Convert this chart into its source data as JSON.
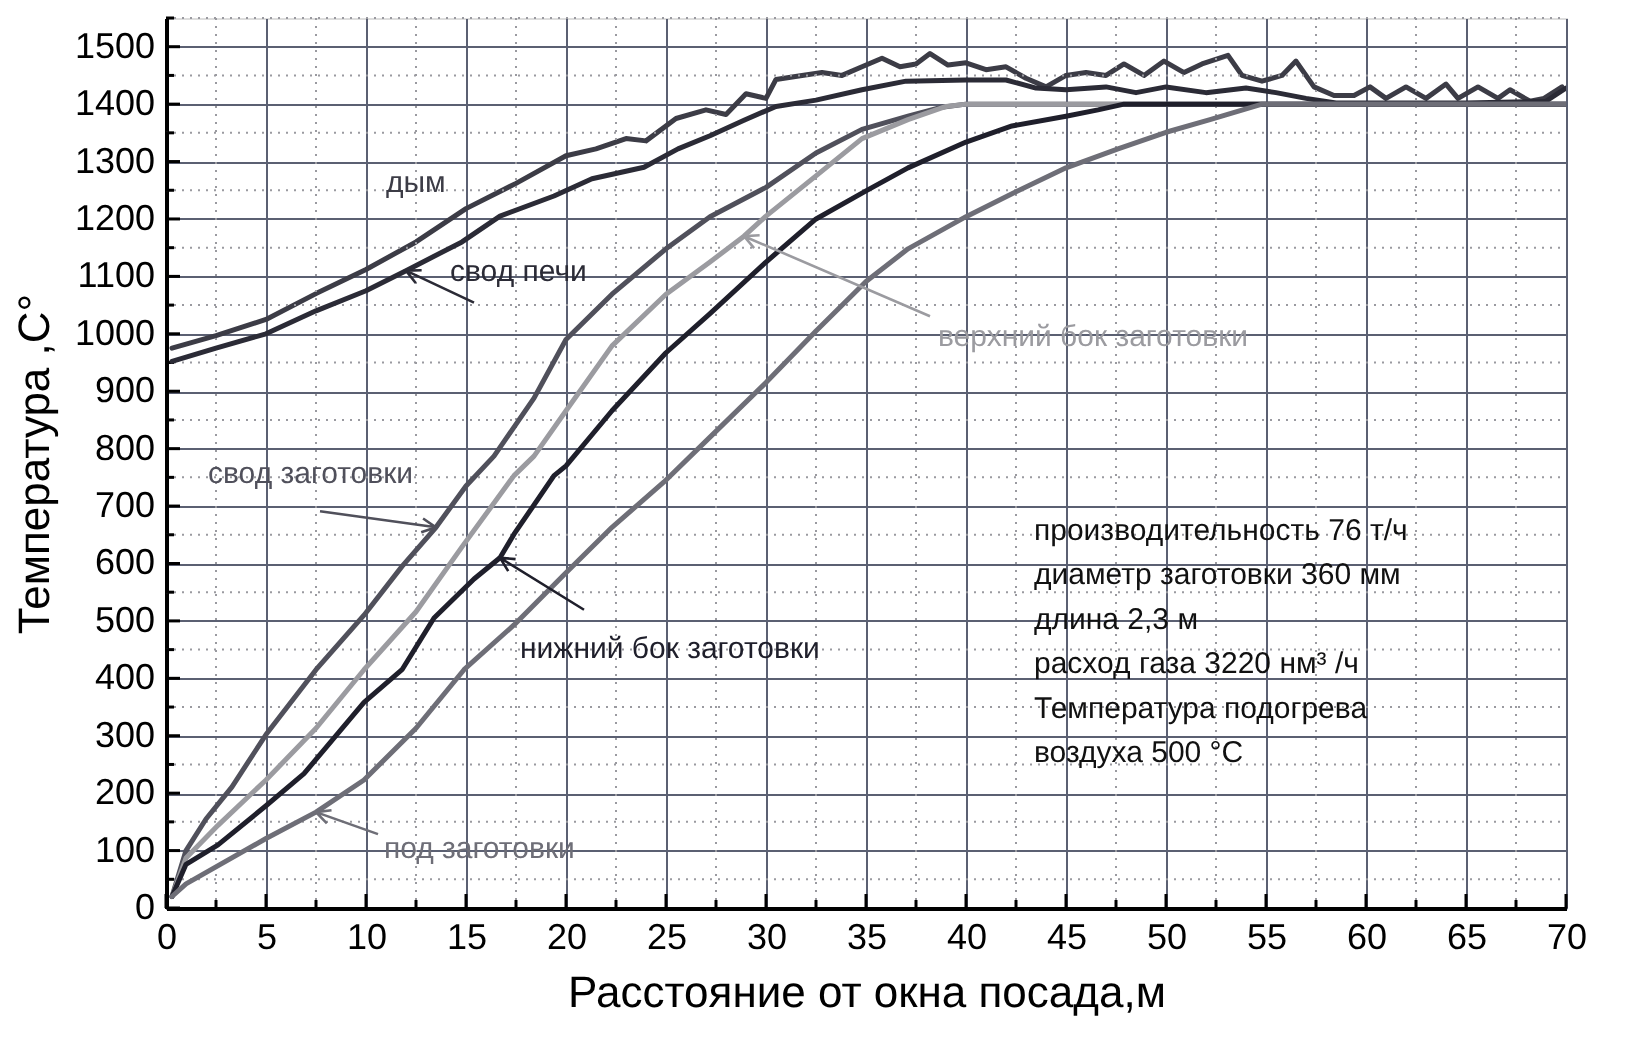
{
  "chart_data": {
    "type": "line",
    "xlabel": "Расстояние от окна посада,м",
    "ylabel": "Температура ,С°",
    "xlim": [
      0,
      70
    ],
    "ylim": [
      0,
      1550
    ],
    "xticks": [
      0,
      {
        "value": 2.5,
        "label": null
      },
      5,
      {
        "value": 7.5,
        "label": null
      },
      10,
      {
        "value": 12.5,
        "label": null
      },
      15,
      {
        "value": 17.5,
        "label": null
      },
      20,
      {
        "value": 22.5,
        "label": null
      },
      25,
      {
        "value": 27.5,
        "label": null
      },
      30,
      {
        "value": 32.5,
        "label": null
      },
      35,
      {
        "value": 37.5,
        "label": null
      },
      40,
      {
        "value": 42.5,
        "label": null
      },
      45,
      {
        "value": 47.5,
        "label": null
      },
      50,
      {
        "value": 52.5,
        "label": null
      },
      55,
      {
        "value": 57.5,
        "label": null
      },
      60,
      {
        "value": 62.5,
        "label": null
      },
      65,
      {
        "value": 67.5,
        "label": null
      },
      70
    ],
    "yticks": [
      0,
      {
        "value": 50,
        "label": null
      },
      100,
      {
        "value": 150,
        "label": null
      },
      200,
      {
        "value": 250,
        "label": null
      },
      300,
      {
        "value": 350,
        "label": null
      },
      400,
      {
        "value": 450,
        "label": null
      },
      500,
      {
        "value": 550,
        "label": null
      },
      600,
      {
        "value": 650,
        "label": null
      },
      700,
      {
        "value": 750,
        "label": null
      },
      800,
      {
        "value": 850,
        "label": null
      },
      900,
      {
        "value": 950,
        "label": null
      },
      1000,
      {
        "value": 1050,
        "label": null
      },
      1100,
      {
        "value": 1150,
        "label": null
      },
      1200,
      {
        "value": 1250,
        "label": null
      },
      1300,
      {
        "value": 1350,
        "label": null
      },
      1400,
      {
        "value": 1450,
        "label": null
      },
      1500,
      {
        "value": 1550,
        "label": null
      }
    ],
    "grid": true,
    "series": [
      {
        "name": "дым",
        "color": "#3c3c46",
        "x": [
          0.3,
          2.5,
          5,
          7.5,
          10,
          12.5,
          15,
          17.5,
          20,
          21.5,
          23,
          24,
          25.5,
          27,
          28,
          29,
          30,
          30.5,
          31.8,
          32.8,
          33.8,
          34.8,
          35.8,
          36.7,
          37.5,
          38.2,
          39.1,
          40,
          41,
          42,
          43,
          44,
          45,
          46,
          47,
          47.9,
          48.9,
          49.9,
          50.9,
          51.8,
          53.1,
          53.8,
          54.8,
          55.8,
          56.5,
          57.4,
          58.4,
          59.4,
          60.2,
          61,
          62,
          63,
          64,
          64.6,
          65.6,
          66.6,
          67.2,
          68.2,
          68.9,
          69.8
        ],
        "values": [
          975,
          997,
          1025,
          1070,
          1112,
          1160,
          1218,
          1262,
          1310,
          1322,
          1340,
          1336,
          1375,
          1390,
          1382,
          1418,
          1410,
          1443,
          1450,
          1455,
          1450,
          1465,
          1480,
          1465,
          1470,
          1488,
          1468,
          1472,
          1460,
          1465,
          1445,
          1430,
          1450,
          1455,
          1450,
          1470,
          1450,
          1475,
          1455,
          1470,
          1485,
          1450,
          1440,
          1450,
          1475,
          1430,
          1415,
          1415,
          1430,
          1410,
          1430,
          1410,
          1435,
          1410,
          1430,
          1410,
          1425,
          1405,
          1410,
          1430
        ]
      },
      {
        "name": "свод печи",
        "color": "#2b2b36",
        "x": [
          0.3,
          2.5,
          5,
          7.5,
          10,
          12,
          14.8,
          16.7,
          19.4,
          21.3,
          23.9,
          25.6,
          27.2,
          28.9,
          30.5,
          32.5,
          34.8,
          37,
          40,
          42,
          43.5,
          45,
          47,
          48.5,
          50,
          52,
          54,
          55.5,
          57,
          58.5,
          60,
          65,
          69,
          70
        ],
        "values": [
          952,
          975,
          1000,
          1040,
          1075,
          1110,
          1160,
          1205,
          1240,
          1270,
          1290,
          1322,
          1345,
          1372,
          1396,
          1407,
          1425,
          1440,
          1442,
          1442,
          1428,
          1425,
          1430,
          1420,
          1430,
          1420,
          1428,
          1420,
          1410,
          1402,
          1402,
          1402,
          1405,
          1428
        ]
      },
      {
        "name": "свод заготовки",
        "color": "#50505b",
        "x": [
          0.3,
          1,
          2,
          3.3,
          5,
          7.5,
          9.9,
          11.8,
          13.5,
          15,
          16.4,
          18.4,
          20,
          22.3,
          25,
          27.2,
          30,
          32.5,
          34.8,
          37.1,
          38.7,
          40,
          70
        ],
        "values": [
          20,
          100,
          155,
          211,
          302,
          415,
          510,
          595,
          663,
          735,
          787,
          888,
          990,
          1069,
          1148,
          1204,
          1255,
          1315,
          1356,
          1379,
          1394,
          1400,
          1400
        ]
      },
      {
        "name": "верхний бок заготовки",
        "color": "#9b9ba0",
        "x": [
          0.3,
          1,
          2.6,
          5,
          7.5,
          9.9,
          12.5,
          14.8,
          17.4,
          18.4,
          20,
          22.3,
          25,
          27.2,
          28.9,
          30,
          32.5,
          34.8,
          37.1,
          39,
          40,
          70
        ],
        "values": [
          20,
          87,
          144,
          223,
          313,
          415,
          516,
          629,
          753,
          787,
          866,
          979,
          1069,
          1125,
          1170,
          1205,
          1275,
          1340,
          1373,
          1396,
          1400,
          1400
        ]
      },
      {
        "name": "нижний бок заготовки",
        "color": "#1f1f2b",
        "x": [
          0.3,
          1,
          2.6,
          5,
          6.9,
          9.9,
          11.8,
          13.4,
          15.4,
          16.7,
          17.4,
          19.4,
          20,
          22.3,
          25,
          27.2,
          30,
          32.5,
          35,
          37.1,
          40,
          42.3,
          45,
          46.6,
          47.9,
          70
        ],
        "values": [
          20,
          76,
          110,
          178,
          234,
          358,
          415,
          505,
          573,
          610,
          651,
          753,
          770,
          866,
          967,
          1035,
          1125,
          1200,
          1249,
          1289,
          1334,
          1362,
          1379,
          1390,
          1400,
          1400
        ]
      },
      {
        "name": "под заготовки",
        "color": "#6e6e77",
        "x": [
          0.3,
          1,
          5,
          7.5,
          9.9,
          12.5,
          14.9,
          17.4,
          20,
          22.3,
          24.9,
          27.2,
          30,
          32.5,
          35,
          37.1,
          40,
          42.3,
          45,
          47.6,
          50,
          52.2,
          54.8,
          70
        ],
        "values": [
          20,
          42,
          121,
          167,
          223,
          313,
          415,
          493,
          584,
          663,
          742,
          820,
          915,
          1005,
          1091,
          1148,
          1204,
          1244,
          1289,
          1322,
          1351,
          1373,
          1400,
          1400
        ]
      }
    ],
    "annotations": [
      "производительность 76 т/ч",
      "диаметр заготовки 360 мм",
      "длина 2,3 м",
      "расход газа 3220 нм³ /ч",
      "Температура подогрева",
      "воздуха 500 °C"
    ]
  }
}
